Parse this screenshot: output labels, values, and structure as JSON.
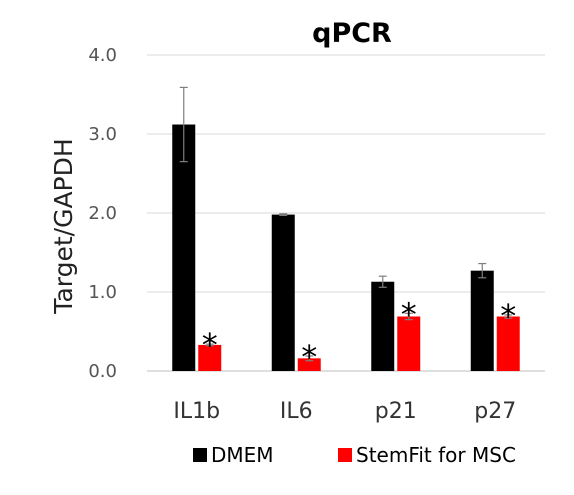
{
  "chart_data": {
    "type": "bar",
    "title": "qPCR",
    "ylabel": "Target/GAPDH",
    "xlabel": "",
    "ylim": [
      0,
      4
    ],
    "yticks": [
      "0.0",
      "1.0",
      "2.0",
      "3.0",
      "4.0"
    ],
    "grid": true,
    "legend_position": "bottom",
    "categories": [
      "IL1b",
      "IL6",
      "p21",
      "p27"
    ],
    "series": [
      {
        "name": "DMEM",
        "color": "#000000",
        "values": [
          3.12,
          1.98,
          1.13,
          1.27
        ],
        "errors": [
          0.47,
          0.01,
          0.07,
          0.09
        ]
      },
      {
        "name": "StemFit for MSC",
        "color": "#ff0000",
        "values": [
          0.33,
          0.16,
          0.69,
          0.69
        ],
        "errors": [
          0.01,
          0.03,
          0.04,
          0.02
        ]
      }
    ],
    "significance": [
      {
        "category": "IL1b",
        "series": "StemFit for MSC",
        "mark": "*"
      },
      {
        "category": "IL6",
        "series": "StemFit for MSC",
        "mark": "*"
      },
      {
        "category": "p21",
        "series": "StemFit for MSC",
        "mark": "*"
      },
      {
        "category": "p27",
        "series": "StemFit for MSC",
        "mark": "*"
      }
    ]
  }
}
